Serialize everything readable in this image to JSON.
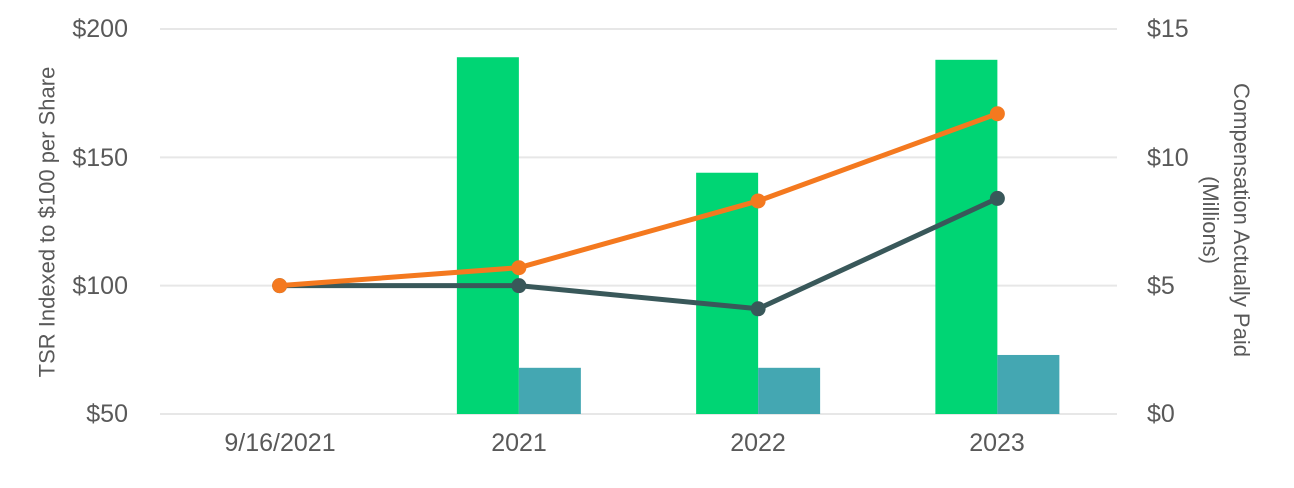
{
  "colors": {
    "green_bar": "#00D574",
    "teal_bar": "#44A7B2",
    "orange_line": "#F4791F",
    "dark_line": "#39585A",
    "grid": "#E7E7E7",
    "text": "#595959"
  },
  "chart_data": {
    "type": "bar",
    "subtype": "combo-bar-line-dual-axis",
    "categories": [
      "9/16/2021",
      "2021",
      "2022",
      "2023"
    ],
    "bar_series": [
      {
        "name": "green-bar-series",
        "axis": "right",
        "color": "#00D574",
        "values": [
          null,
          13.9,
          9.4,
          13.8
        ]
      },
      {
        "name": "teal-bar-series",
        "axis": "right",
        "color": "#44A7B2",
        "values": [
          null,
          1.8,
          1.8,
          2.3
        ]
      }
    ],
    "line_series": [
      {
        "name": "dark-teal-line-series",
        "axis": "left",
        "color": "#39585A",
        "values": [
          100,
          100,
          91,
          134
        ]
      },
      {
        "name": "orange-line-series",
        "axis": "left",
        "color": "#F4791F",
        "values": [
          100,
          107,
          133,
          167
        ]
      }
    ],
    "left_axis": {
      "title": "TSR Indexed to $100 per Share",
      "min": 50,
      "max": 200,
      "ticks": [
        "$200",
        "$150",
        "$100",
        "$50"
      ]
    },
    "right_axis": {
      "title_line1": "Compensation Actually Paid",
      "title_line2": "(Millions)",
      "min": 0,
      "max": 15,
      "ticks": [
        "$15",
        "$10",
        "$5",
        "$0"
      ]
    },
    "grid": true,
    "legend": "none",
    "title": ""
  }
}
